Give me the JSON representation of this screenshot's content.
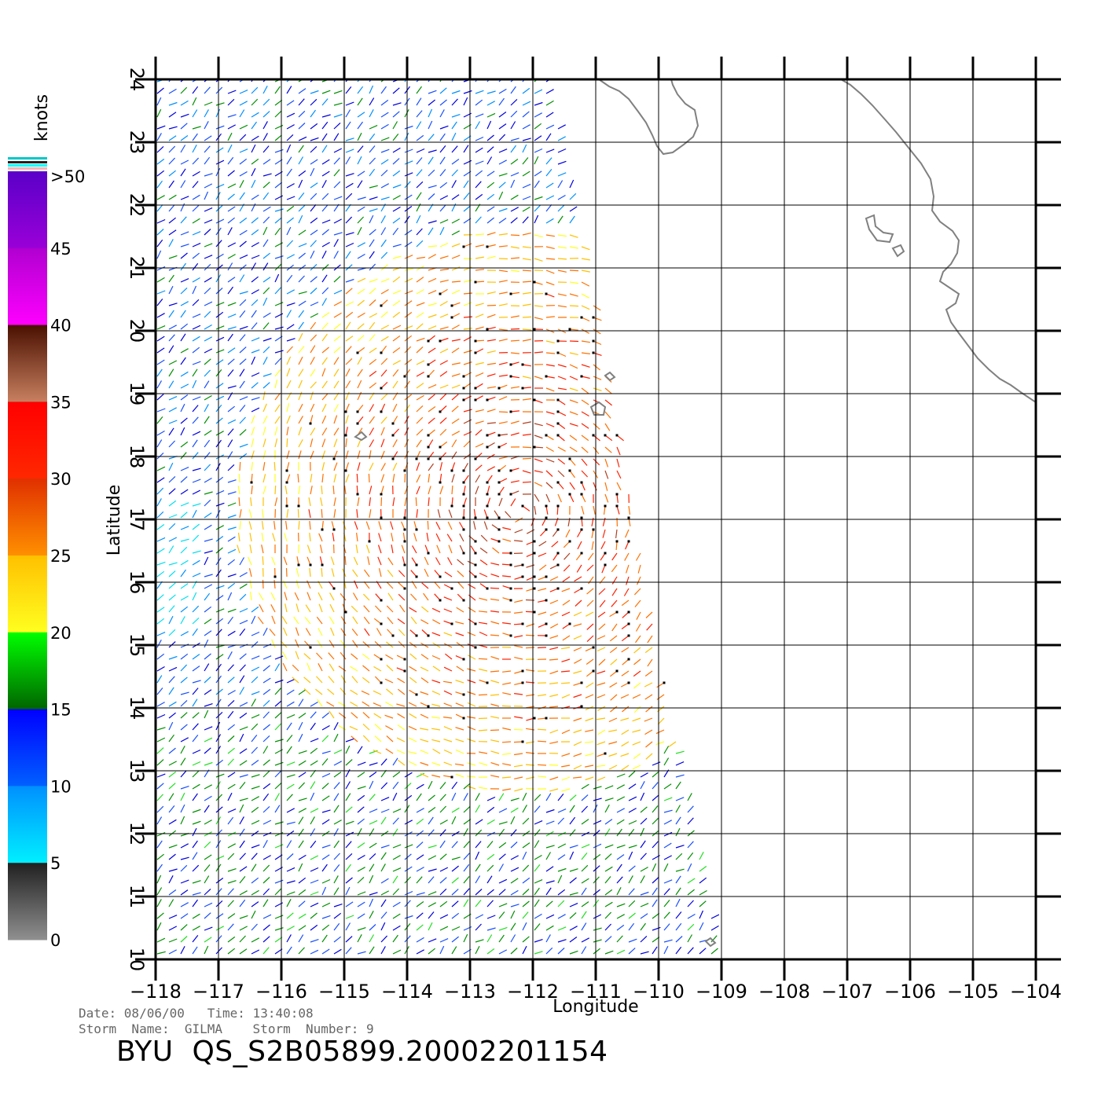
{
  "map": {
    "x_axis_label": "Longitude",
    "y_axis_label": "Latitude",
    "lon_ticks": [
      "-118",
      "-117",
      "-116",
      "-115",
      "-114",
      "-113",
      "-112",
      "-111",
      "-110",
      "-109",
      "-108",
      "-107",
      "-106",
      "-105",
      "-104"
    ],
    "lat_ticks": [
      "10",
      "11",
      "12",
      "13",
      "14",
      "15",
      "16",
      "17",
      "18",
      "19",
      "20",
      "21",
      "22",
      "23",
      "24"
    ],
    "lon_range": [
      -118,
      -104
    ],
    "lat_range": [
      10,
      24
    ],
    "grid": true,
    "coastline_color": "#808080"
  },
  "color_scale": {
    "title": "knots",
    "labels": [
      ">50",
      "45",
      "40",
      "35",
      "30",
      "25",
      "20",
      "15",
      "10",
      "5",
      "0"
    ],
    "bands": [
      {
        "from": 45,
        "to": 50,
        "top": "#5a00c8",
        "bottom": "#9a00d8"
      },
      {
        "from": 40,
        "to": 45,
        "top": "#b000d0",
        "bottom": "#ff00ff"
      },
      {
        "from": 35,
        "to": 40,
        "top": "#4a1000",
        "bottom": "#c88060"
      },
      {
        "from": 30,
        "to": 35,
        "top": "#ff0000",
        "bottom": "#ff2800"
      },
      {
        "from": 25,
        "to": 30,
        "top": "#e03000",
        "bottom": "#ff9000"
      },
      {
        "from": 20,
        "to": 25,
        "top": "#ffc000",
        "bottom": "#ffff20"
      },
      {
        "from": 15,
        "to": 20,
        "top": "#00ff00",
        "bottom": "#006400"
      },
      {
        "from": 10,
        "to": 15,
        "top": "#0000ff",
        "bottom": "#0060ff"
      },
      {
        "from": 5,
        "to": 10,
        "top": "#0090ff",
        "bottom": "#00f0ff"
      },
      {
        "from": 0,
        "to": 5,
        "top": "#202020",
        "bottom": "#909090"
      }
    ]
  },
  "info": {
    "line1": "Date: 08/06/00   Time: 13:40:08",
    "line2": "Storm  Name:  GILMA    Storm  Number: 9"
  },
  "title": "BYU  QS_S2B05899.20002201154"
}
